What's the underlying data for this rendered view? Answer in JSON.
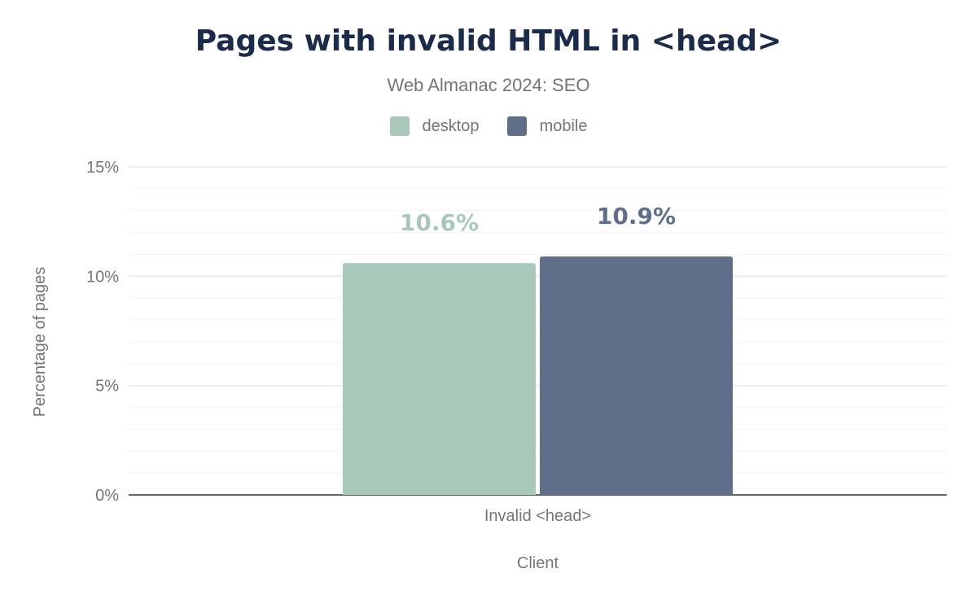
{
  "chart_data": {
    "type": "bar",
    "title": "Pages with invalid HTML in <head>",
    "subtitle": "Web Almanac 2024: SEO",
    "xlabel": "Client",
    "ylabel": "Percentage of pages",
    "categories": [
      "Invalid <head>"
    ],
    "series": [
      {
        "name": "desktop",
        "values": [
          10.6
        ],
        "labels": [
          "10.6%"
        ],
        "color": "#a8c8b9"
      },
      {
        "name": "mobile",
        "values": [
          10.9
        ],
        "labels": [
          "10.9%"
        ],
        "color": "#5f6f8a"
      }
    ],
    "ylim": [
      0,
      15
    ],
    "yticks": [
      "0%",
      "5%",
      "10%",
      "15%"
    ],
    "grid": true,
    "legend_position": "top"
  }
}
